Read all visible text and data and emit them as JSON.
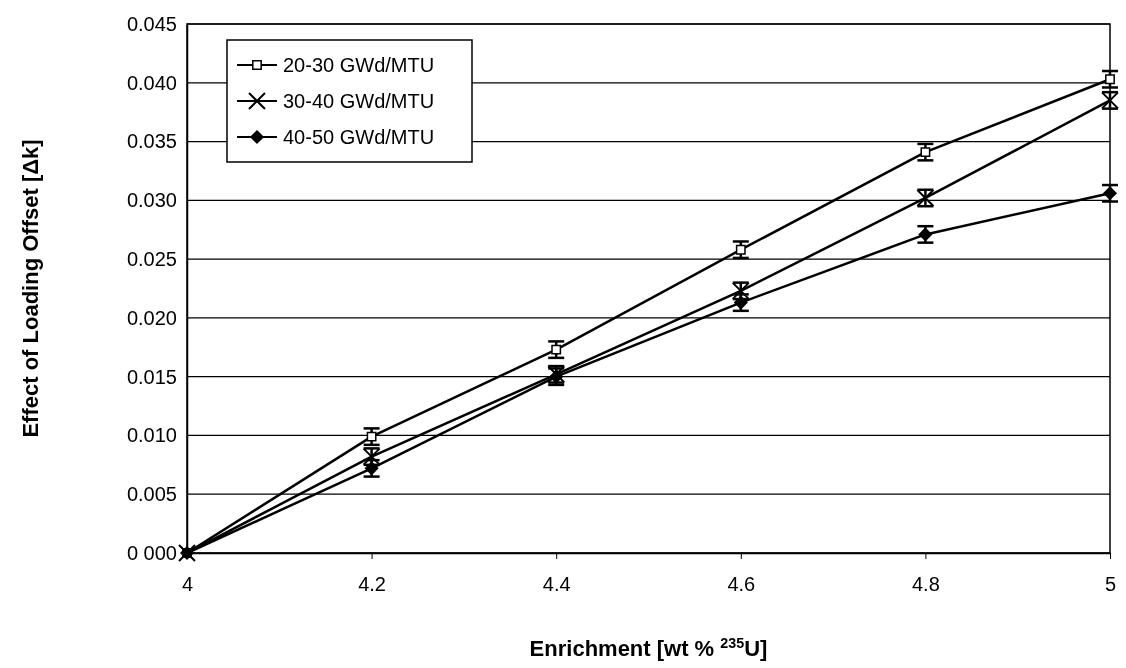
{
  "chart_data": {
    "type": "line",
    "xlabel": "Enrichment [wt % $^{235}$U]",
    "ylabel": "Effect of Loading Offset [Δk]",
    "x": [
      4,
      4.2,
      4.4,
      4.6,
      4.8,
      5
    ],
    "xlim": [
      4,
      5
    ],
    "xticks": [
      4,
      4.2,
      4.4,
      4.6,
      4.8,
      5
    ],
    "ylim": [
      0,
      0.045
    ],
    "yticks": [
      {
        "value": 0,
        "label": "0 000"
      },
      {
        "value": 0.005,
        "label": "0.005"
      },
      {
        "value": 0.01,
        "label": "0.010"
      },
      {
        "value": 0.015,
        "label": "0.015"
      },
      {
        "value": 0.02,
        "label": "0.020"
      },
      {
        "value": 0.025,
        "label": "0.025"
      },
      {
        "value": 0.03,
        "label": "0.030"
      },
      {
        "value": 0.035,
        "label": "0.035"
      },
      {
        "value": 0.04,
        "label": "0.040"
      },
      {
        "value": 0.045,
        "label": "0.045"
      }
    ],
    "grid": "y",
    "legend": "top left",
    "line_style": "solid",
    "series": [
      {
        "name": "20-30 GWd/MTU",
        "color": "#000000",
        "marker": "square",
        "values": [
          0,
          0.0099,
          0.0173,
          0.0258,
          0.0341,
          0.0403
        ],
        "errors": [
          null,
          0.0007,
          0.0007,
          0.0007,
          0.0007,
          0.0007
        ]
      },
      {
        "name": "30-40 GWd/MTU",
        "color": "#000000",
        "marker": "cross",
        "values": [
          0,
          0.0082,
          0.0152,
          0.0223,
          0.0302,
          0.0385
        ],
        "errors": [
          null,
          0.0007,
          0.0007,
          0.0007,
          0.0007,
          0.0007
        ]
      },
      {
        "name": "40-50 GWd/MTU",
        "color": "#000000",
        "marker": "diamond",
        "values": [
          0,
          0.0072,
          0.015,
          0.0213,
          0.0271,
          0.0306
        ],
        "errors": [
          null,
          0.0007,
          0.0007,
          0.0007,
          0.0007,
          0.0007
        ]
      }
    ]
  }
}
